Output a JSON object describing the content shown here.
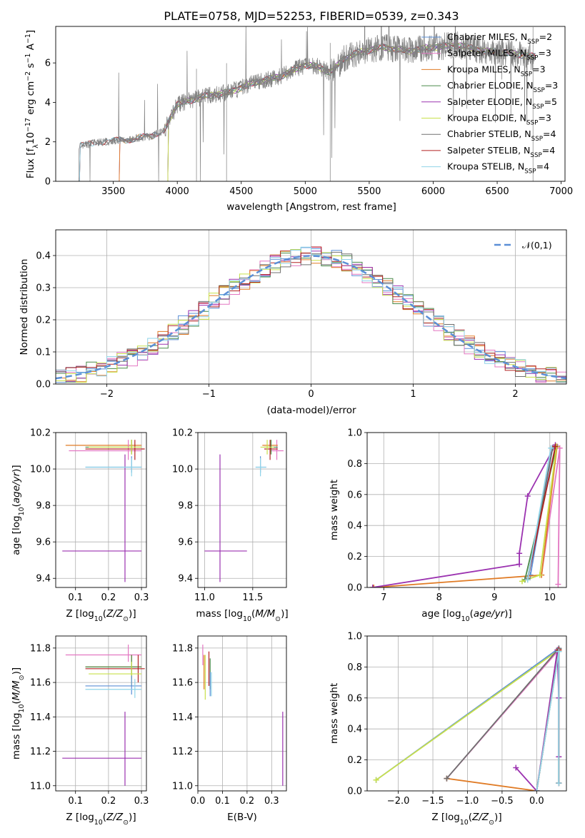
{
  "figure": {
    "title": "PLATE=0758, MJD=52253, FIBERID=0539, z=0.343"
  },
  "colors": {
    "Chabrier MILES": "#5b8fd6",
    "Salpeter MILES": "#e377c2",
    "Kroupa MILES": "#e07b25",
    "Chabrier ELODIE": "#4a8a4a",
    "Salpeter ELODIE": "#9b32b0",
    "Kroupa ELODIE": "#c8e04a",
    "Chabrier STELIB": "#707070",
    "Salpeter STELIB": "#b22222",
    "Kroupa STELIB": "#8fd3e8"
  },
  "chart_data": [
    {
      "id": "spectrum",
      "type": "line",
      "xlabel": "wavelength [Angstrom, rest frame]",
      "ylabel": "Flux [f_λ 10^-17 erg cm^-2 s^-1 A^-1]",
      "xlim": [
        3050,
        7030
      ],
      "ylim": [
        0,
        7.85
      ],
      "xticks": [
        3500,
        4000,
        4500,
        5000,
        5500,
        6000,
        6500,
        7000
      ],
      "yticks": [
        0,
        2,
        4,
        6
      ],
      "legend": {
        "placement": "top-right",
        "entries": [
          {
            "label": "Chabrier MILES, N",
            "sub": "SSP",
            "suffix": "=2",
            "model": "Chabrier MILES"
          },
          {
            "label": "Salpeter MILES, N",
            "sub": "SSP",
            "suffix": "=3",
            "model": "Salpeter MILES"
          },
          {
            "label": "Kroupa MILES, N",
            "sub": "SSP",
            "suffix": "=3",
            "model": "Kroupa MILES"
          },
          {
            "label": "Chabrier ELODIE, N",
            "sub": "SSP",
            "suffix": "=3",
            "model": "Chabrier ELODIE"
          },
          {
            "label": "Salpeter ELODIE, N",
            "sub": "SSP",
            "suffix": "=5",
            "model": "Salpeter ELODIE"
          },
          {
            "label": "Kroupa ELODIE, N",
            "sub": "SSP",
            "suffix": "=3",
            "model": "Kroupa ELODIE"
          },
          {
            "label": "Chabrier STELIB, N",
            "sub": "SSP",
            "suffix": "=4",
            "model": "Chabrier STELIB"
          },
          {
            "label": "Salpeter STELIB, N",
            "sub": "SSP",
            "suffix": "=4",
            "model": "Salpeter STELIB"
          },
          {
            "label": "Kroupa STELIB, N",
            "sub": "SSP",
            "suffix": "=4",
            "model": "Kroupa STELIB"
          }
        ]
      },
      "data_continuum": {
        "x": [
          3230,
          3400,
          3600,
          3800,
          3900,
          3950,
          4000,
          4200,
          4400,
          4600,
          4800,
          5000,
          5100,
          5200,
          5300,
          5400,
          5600,
          5800,
          6000,
          6200,
          6400,
          6600,
          6800,
          6800
        ],
        "y": [
          1.8,
          2.0,
          2.1,
          2.3,
          2.6,
          3.3,
          3.9,
          4.3,
          4.5,
          5.0,
          5.3,
          5.9,
          5.8,
          5.5,
          6.2,
          6.5,
          6.8,
          6.6,
          6.8,
          6.9,
          6.6,
          6.5,
          6.3,
          6.3
        ]
      },
      "model_start_x": {
        "MILES": 3540,
        "ELODIE": 3920,
        "STELIB": 3230
      }
    },
    {
      "id": "residuals",
      "type": "histogram",
      "xlabel": "(data-model)/error",
      "ylabel": "Normed distribution",
      "xlim": [
        -2.5,
        2.5
      ],
      "ylim": [
        0,
        0.48
      ],
      "xticks": [
        -2,
        -1,
        0,
        1,
        2
      ],
      "yticks": [
        0.0,
        0.1,
        0.2,
        0.3,
        0.4
      ],
      "grid": true,
      "bin_width": 0.1,
      "reference_curve": {
        "label": "𝒩(0,1)",
        "mean": 0,
        "sigma": 1,
        "style": "dashed",
        "color": "#5b8fd6",
        "legend_placement": "top-right"
      }
    },
    {
      "id": "age-vs-Z",
      "type": "errorbar",
      "xlabel": "Z [log10(Z/Z⊙)]",
      "ylabel": "age [log10(age/yr)]",
      "xlim": [
        0.04,
        0.315
      ],
      "ylim": [
        9.35,
        10.2
      ],
      "xticks": [
        0.1,
        0.2,
        0.3
      ],
      "yticks": [
        9.4,
        9.6,
        9.8,
        10.0,
        10.2
      ],
      "grid": true,
      "points": [
        {
          "model": "Kroupa MILES",
          "x": 0.27,
          "y": 10.13,
          "xlo": 0.07,
          "xhi": 0.3,
          "ylo": 10.09,
          "yhi": 10.16
        },
        {
          "model": "Salpeter ELODIE",
          "x": 0.25,
          "y": 9.55,
          "xlo": 0.06,
          "xhi": 0.3,
          "ylo": 9.38,
          "yhi": 10.08
        },
        {
          "model": "Salpeter MILES",
          "x": 0.26,
          "y": 10.1,
          "xlo": 0.08,
          "xhi": 0.3,
          "ylo": 10.05,
          "yhi": 10.16
        },
        {
          "model": "Chabrier ELODIE",
          "x": 0.27,
          "y": 10.12,
          "xlo": 0.13,
          "xhi": 0.3,
          "ylo": 10.08,
          "yhi": 10.16
        },
        {
          "model": "Salpeter STELIB",
          "x": 0.28,
          "y": 10.11,
          "xlo": 0.13,
          "xhi": 0.31,
          "ylo": 10.05,
          "yhi": 10.16
        },
        {
          "model": "Chabrier MILES",
          "x": 0.27,
          "y": 10.01,
          "xlo": 0.13,
          "xhi": 0.3,
          "ylo": 9.98,
          "yhi": 10.07
        },
        {
          "model": "Kroupa STELIB",
          "x": 0.27,
          "y": 10.01,
          "xlo": 0.13,
          "xhi": 0.3,
          "ylo": 9.96,
          "yhi": 10.06
        },
        {
          "model": "Kroupa ELODIE",
          "x": 0.27,
          "y": 10.12,
          "xlo": 0.14,
          "xhi": 0.3,
          "ylo": 10.08,
          "yhi": 10.16
        }
      ]
    },
    {
      "id": "age-vs-mass",
      "type": "errorbar",
      "xlabel": "mass [log10(M/M⊙)]",
      "ylabel": "",
      "xlim": [
        10.93,
        11.85
      ],
      "ylim": [
        9.35,
        10.2
      ],
      "xticks": [
        11.0,
        11.5
      ],
      "yticks": [
        9.4,
        9.6,
        9.8,
        10.0,
        10.2
      ],
      "grid": true,
      "points": [
        {
          "model": "Salpeter ELODIE",
          "x": 11.16,
          "y": 9.55,
          "xlo": 11.0,
          "xhi": 11.44,
          "ylo": 9.38,
          "yhi": 10.08
        },
        {
          "model": "Salpeter MILES",
          "x": 11.75,
          "y": 10.1,
          "xlo": 11.68,
          "xhi": 11.82,
          "ylo": 10.05,
          "yhi": 10.16
        },
        {
          "model": "Kroupa MILES",
          "x": 11.69,
          "y": 10.13,
          "xlo": 11.6,
          "xhi": 11.76,
          "ylo": 10.09,
          "yhi": 10.16
        },
        {
          "model": "Chabrier ELODIE",
          "x": 11.69,
          "y": 10.12,
          "xlo": 11.62,
          "xhi": 11.76,
          "ylo": 10.08,
          "yhi": 10.16
        },
        {
          "model": "Salpeter STELIB",
          "x": 11.68,
          "y": 10.11,
          "xlo": 11.62,
          "xhi": 11.76,
          "ylo": 10.05,
          "yhi": 10.16
        },
        {
          "model": "Chabrier MILES",
          "x": 11.58,
          "y": 10.01,
          "xlo": 11.53,
          "xhi": 11.64,
          "ylo": 9.98,
          "yhi": 10.07
        },
        {
          "model": "Kroupa STELIB",
          "x": 11.58,
          "y": 10.01,
          "xlo": 11.53,
          "xhi": 11.64,
          "ylo": 9.96,
          "yhi": 10.06
        },
        {
          "model": "Kroupa ELODIE",
          "x": 11.65,
          "y": 10.12,
          "xlo": 11.58,
          "xhi": 11.72,
          "ylo": 10.08,
          "yhi": 10.16
        }
      ]
    },
    {
      "id": "weight-vs-age",
      "type": "line",
      "xlabel": "age [log10(age/yr)]",
      "ylabel": "mass weight",
      "xlim": [
        6.7,
        10.3
      ],
      "ylim": [
        0,
        1.0
      ],
      "xticks": [
        7,
        8,
        9,
        10
      ],
      "yticks": [
        0.0,
        0.2,
        0.4,
        0.6,
        0.8,
        1.0
      ],
      "grid": true,
      "series": [
        {
          "model": "Chabrier MILES",
          "x": [
            9.65,
            10.05
          ],
          "y": [
            0.08,
            0.9
          ]
        },
        {
          "model": "Salpeter MILES",
          "x": [
            9.85,
            10.18,
            10.15
          ],
          "y": [
            0.08,
            0.9,
            0.02
          ]
        },
        {
          "model": "Kroupa MILES",
          "x": [
            6.82,
            9.85,
            10.13
          ],
          "y": [
            0.0,
            0.08,
            0.91
          ]
        },
        {
          "model": "Chabrier ELODIE",
          "x": [
            9.55,
            10.12
          ],
          "y": [
            0.05,
            0.91
          ]
        },
        {
          "model": "Salpeter ELODIE",
          "x": [
            6.8,
            9.45,
            9.45,
            9.6,
            10.1
          ],
          "y": [
            0.0,
            0.15,
            0.22,
            0.59,
            0.92
          ]
        },
        {
          "model": "Kroupa ELODIE",
          "x": [
            9.5,
            9.82,
            10.12
          ],
          "y": [
            0.04,
            0.08,
            0.91
          ]
        },
        {
          "model": "Chabrier STELIB",
          "x": [
            9.6,
            10.05
          ],
          "y": [
            0.06,
            0.9
          ]
        },
        {
          "model": "Salpeter STELIB",
          "x": [
            9.6,
            10.1
          ],
          "y": [
            0.05,
            0.91
          ]
        },
        {
          "model": "Kroupa STELIB",
          "x": [
            9.6,
            10.02
          ],
          "y": [
            0.05,
            0.9
          ]
        }
      ]
    },
    {
      "id": "mass-vs-Z",
      "type": "errorbar",
      "xlabel": "Z [log10(Z/Z⊙)]",
      "ylabel": "mass [log10(M/M⊙)]",
      "xlim": [
        0.04,
        0.315
      ],
      "ylim": [
        10.97,
        11.87
      ],
      "xticks": [
        0.1,
        0.2,
        0.3
      ],
      "yticks": [
        11.0,
        11.2,
        11.4,
        11.6,
        11.8
      ],
      "grid": true,
      "points": [
        {
          "model": "Salpeter MILES",
          "x": 0.26,
          "y": 11.76,
          "xlo": 0.07,
          "xhi": 0.3,
          "ylo": 11.72,
          "yhi": 11.82
        },
        {
          "model": "Kroupa MILES",
          "x": 0.27,
          "y": 11.69,
          "xlo": 0.13,
          "xhi": 0.3,
          "ylo": 11.62,
          "yhi": 11.76
        },
        {
          "model": "Chabrier ELODIE",
          "x": 0.27,
          "y": 11.69,
          "xlo": 0.13,
          "xhi": 0.3,
          "ylo": 11.62,
          "yhi": 11.76
        },
        {
          "model": "Salpeter STELIB",
          "x": 0.29,
          "y": 11.68,
          "xlo": 0.13,
          "xhi": 0.31,
          "ylo": 11.6,
          "yhi": 11.76
        },
        {
          "model": "Kroupa ELODIE",
          "x": 0.27,
          "y": 11.65,
          "xlo": 0.14,
          "xhi": 0.3,
          "ylo": 11.58,
          "yhi": 11.72
        },
        {
          "model": "Chabrier MILES",
          "x": 0.27,
          "y": 11.58,
          "xlo": 0.13,
          "xhi": 0.3,
          "ylo": 11.53,
          "yhi": 11.64
        },
        {
          "model": "Kroupa STELIB",
          "x": 0.28,
          "y": 11.56,
          "xlo": 0.13,
          "xhi": 0.3,
          "ylo": 11.51,
          "yhi": 11.62
        },
        {
          "model": "Salpeter ELODIE",
          "x": 0.25,
          "y": 11.16,
          "xlo": 0.06,
          "xhi": 0.3,
          "ylo": 11.0,
          "yhi": 11.43
        }
      ]
    },
    {
      "id": "mass-vs-EBV",
      "type": "errorbar",
      "xlabel": "E(B-V)",
      "ylabel": "",
      "xlim": [
        0.0,
        0.36
      ],
      "ylim": [
        10.97,
        11.87
      ],
      "xticks": [
        0.0,
        0.1,
        0.2,
        0.3
      ],
      "yticks": [
        11.0,
        11.2,
        11.4,
        11.6,
        11.8
      ],
      "grid": true,
      "points": [
        {
          "model": "Salpeter MILES",
          "x": 0.02,
          "y": 11.76,
          "ylo": 11.7,
          "yhi": 11.82
        },
        {
          "model": "Kroupa ELODIE",
          "x": 0.03,
          "y": 11.65,
          "ylo": 11.5,
          "yhi": 11.76
        },
        {
          "model": "Kroupa MILES",
          "x": 0.025,
          "y": 11.68,
          "ylo": 11.56,
          "yhi": 11.76
        },
        {
          "model": "Salpeter STELIB",
          "x": 0.045,
          "y": 11.68,
          "ylo": 11.58,
          "yhi": 11.78
        },
        {
          "model": "Chabrier ELODIE",
          "x": 0.05,
          "y": 11.66,
          "ylo": 11.56,
          "yhi": 11.74
        },
        {
          "model": "Chabrier MILES",
          "x": 0.05,
          "y": 11.6,
          "ylo": 11.52,
          "yhi": 11.66
        },
        {
          "model": "Kroupa STELIB",
          "x": 0.055,
          "y": 11.58,
          "ylo": 11.52,
          "yhi": 11.66
        },
        {
          "model": "Salpeter ELODIE",
          "x": 0.345,
          "y": 11.16,
          "ylo": 11.0,
          "yhi": 11.43
        }
      ]
    },
    {
      "id": "weight-vs-Z",
      "type": "line",
      "xlabel": "Z [log10(Z/Z⊙)]",
      "ylabel": "mass weight",
      "xlim": [
        -2.45,
        0.43
      ],
      "ylim": [
        0,
        1.0
      ],
      "xticks": [
        -2.0,
        -1.5,
        -1.0,
        -0.5,
        0.0
      ],
      "yticks": [
        0.0,
        0.2,
        0.4,
        0.6,
        0.8,
        1.0
      ],
      "grid": true,
      "series": [
        {
          "model": "Chabrier MILES",
          "x": [
            -2.32,
            0.32
          ],
          "y": [
            0.07,
            0.92
          ]
        },
        {
          "model": "Salpeter MILES",
          "x": [
            -1.3,
            0.32
          ],
          "y": [
            0.08,
            0.91
          ]
        },
        {
          "model": "Kroupa MILES",
          "x": [
            -1.3,
            0.0,
            0.32
          ],
          "y": [
            0.08,
            0.0,
            0.91
          ]
        },
        {
          "model": "Chabrier ELODIE",
          "x": [
            0.0,
            0.32,
            0.32
          ],
          "y": [
            0.0,
            0.9,
            0.05
          ]
        },
        {
          "model": "Salpeter ELODIE",
          "x": [
            -0.3,
            0.0,
            0.3,
            0.32,
            0.32
          ],
          "y": [
            0.15,
            0.0,
            0.91,
            0.6,
            0.22
          ]
        },
        {
          "model": "Kroupa ELODIE",
          "x": [
            -2.32,
            0.32
          ],
          "y": [
            0.07,
            0.91
          ]
        },
        {
          "model": "Chabrier STELIB",
          "x": [
            -1.3,
            0.32,
            0.32
          ],
          "y": [
            0.08,
            0.92,
            0.05
          ]
        },
        {
          "model": "Salpeter STELIB",
          "x": [
            0.0,
            0.32,
            0.32
          ],
          "y": [
            0.0,
            0.91,
            0.05
          ]
        },
        {
          "model": "Kroupa STELIB",
          "x": [
            0.0,
            0.32,
            0.32
          ],
          "y": [
            0.0,
            0.9,
            0.05
          ]
        }
      ]
    }
  ]
}
